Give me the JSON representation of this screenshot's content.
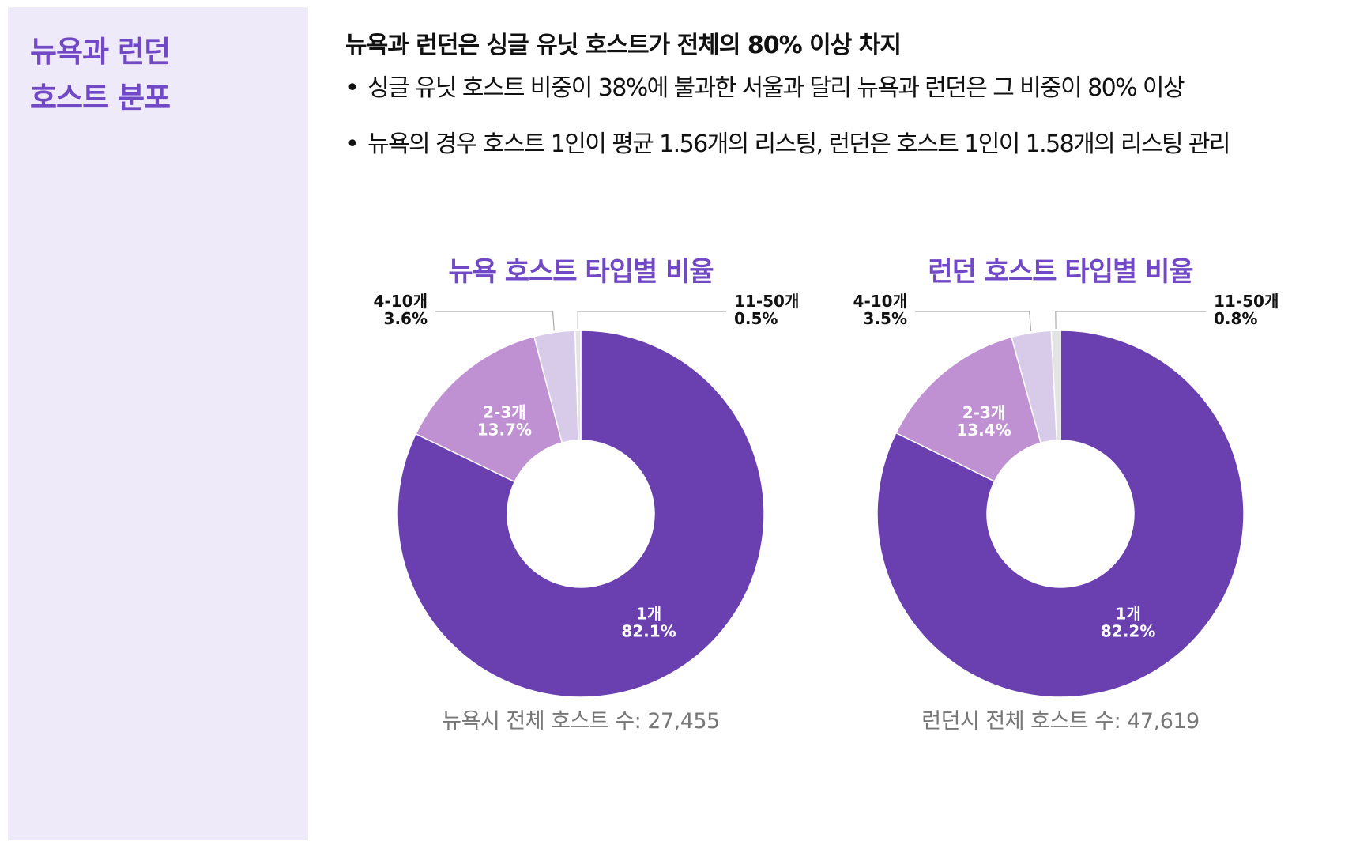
{
  "sidebar": {
    "title_line1": "뉴욕과 런던",
    "title_line2": "호스트 분포"
  },
  "headline": "뉴욕과 런던은 싱글 유닛 호스트가  전체의 80% 이상 차지",
  "bullets": [
    "싱글 유닛 호스트 비중이 38%에 불과한 서울과 달리 뉴욕과 런던은 그 비중이 80% 이상",
    "뉴욕의 경우 호스트 1인이 평균 1.56개의 리스팅, 런던은 호스트 1인이 1.58개의 리스팅 관리"
  ],
  "colors": {
    "accent": "#7149c6",
    "sidebar_bg": "#efeafa"
  },
  "chart_data": [
    {
      "type": "pie",
      "title": "뉴욕 호스트 타입별 비율",
      "footer": "뉴욕시 전체 호스트 수: 27,455",
      "slices": [
        {
          "label": "1개",
          "value": 82.1,
          "value_text": "82.1%",
          "color": "#6a3fb0"
        },
        {
          "label": "2-3개",
          "value": 13.7,
          "value_text": "13.7%",
          "color": "#bf91d2"
        },
        {
          "label": "4-10개",
          "value": 3.6,
          "value_text": "3.6%",
          "color": "#d8cbea"
        },
        {
          "label": "11-50개",
          "value": 0.5,
          "value_text": "0.5%",
          "color": "#e3e3e3"
        }
      ]
    },
    {
      "type": "pie",
      "title": "런던 호스트 타입별 비율",
      "footer": "런던시 전체 호스트 수: 47,619",
      "slices": [
        {
          "label": "1개",
          "value": 82.2,
          "value_text": "82.2%",
          "color": "#6a3fb0"
        },
        {
          "label": "2-3개",
          "value": 13.4,
          "value_text": "13.4%",
          "color": "#bf91d2"
        },
        {
          "label": "4-10개",
          "value": 3.5,
          "value_text": "3.5%",
          "color": "#d8cbea"
        },
        {
          "label": "11-50개",
          "value": 0.8,
          "value_text": "0.8%",
          "color": "#e3e3e3"
        }
      ]
    }
  ]
}
